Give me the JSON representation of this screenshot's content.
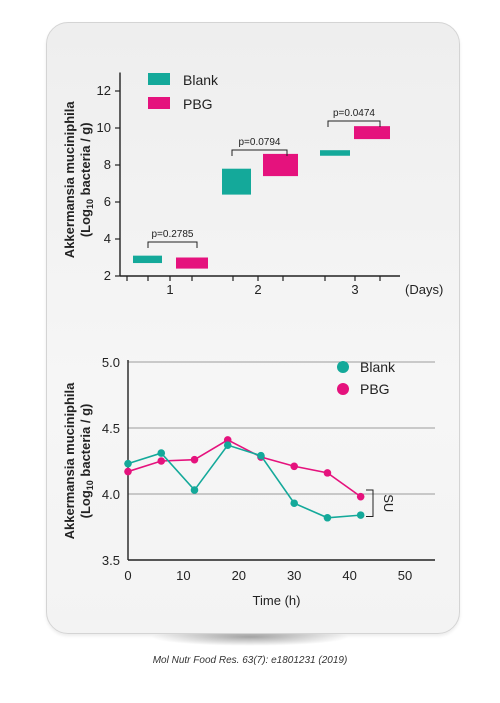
{
  "citation": "Mol Nutr Food Res. 63(7): e1801231 (2019)",
  "colors": {
    "blank": "#14a99a",
    "pbg": "#e5127d"
  },
  "chart_data": [
    {
      "type": "bar",
      "variant": "floating-range",
      "ylabel_line1": "Akkermansia muciniphila",
      "ylabel_line2_pre": "(Log",
      "ylabel_sub": "10",
      "ylabel_line2_post": " bacteria / g)",
      "xlabel": "(Days)",
      "categories": [
        "1",
        "2",
        "3"
      ],
      "ylim": [
        2,
        13
      ],
      "yticks": [
        2,
        4,
        6,
        8,
        10,
        12
      ],
      "series": [
        {
          "name": "Blank",
          "ranges": [
            [
              2.7,
              3.1
            ],
            [
              6.4,
              7.8
            ],
            [
              8.5,
              8.8
            ]
          ]
        },
        {
          "name": "PBG",
          "ranges": [
            [
              2.4,
              3.0
            ],
            [
              7.4,
              8.6
            ],
            [
              9.4,
              10.1
            ]
          ]
        }
      ],
      "annotations": [
        "p=0.2785",
        "p=0.0794",
        "p=0.0474"
      ],
      "legend": "top-left"
    },
    {
      "type": "line",
      "ylabel_line1": "Akkermansia muciniphila",
      "ylabel_line2_pre": "(Log",
      "ylabel_sub": "10",
      "ylabel_line2_post": " bacteria / g)",
      "xlabel": "Time (h)",
      "xlim": [
        0,
        50
      ],
      "ylim": [
        3.5,
        5.0
      ],
      "xticks": [
        0,
        10,
        20,
        30,
        40,
        50
      ],
      "yticks": [
        "5.0",
        "4.5",
        "4.0",
        "3.5"
      ],
      "series": [
        {
          "name": "Blank",
          "x": [
            0,
            6,
            12,
            18,
            24,
            30,
            36,
            42
          ],
          "y": [
            4.23,
            4.31,
            4.03,
            4.37,
            4.29,
            3.93,
            3.82,
            3.84
          ]
        },
        {
          "name": "PBG",
          "x": [
            0,
            6,
            12,
            18,
            24,
            30,
            36,
            42
          ],
          "y": [
            4.17,
            4.25,
            4.26,
            4.41,
            4.28,
            4.21,
            4.16,
            3.98
          ]
        }
      ],
      "annotation": "SU",
      "legend": "top-right",
      "grid": "horizontal"
    }
  ]
}
